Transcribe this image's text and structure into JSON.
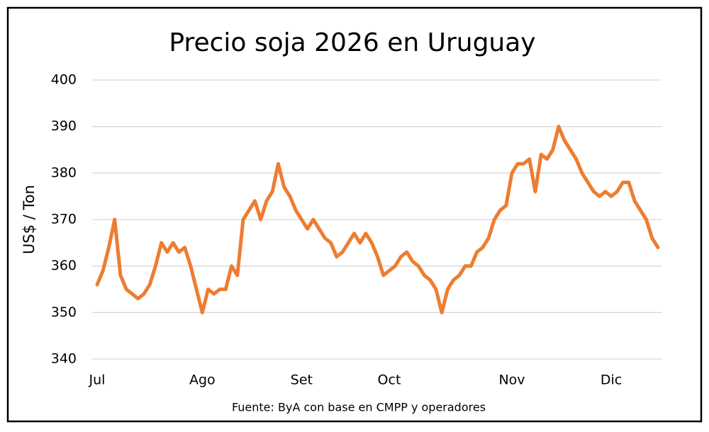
{
  "chart_data": {
    "type": "line",
    "title": "Precio soja 2026 en Uruguay",
    "y_label": "US$ / Ton",
    "source": "Fuente: ByA con base en CMPP y operadores",
    "categories": [
      "Jul",
      null,
      null,
      null,
      null,
      null,
      null,
      null,
      null,
      null,
      null,
      null,
      null,
      null,
      null,
      null,
      null,
      null,
      "Ago",
      null,
      null,
      null,
      null,
      null,
      null,
      null,
      null,
      null,
      null,
      null,
      null,
      null,
      null,
      null,
      null,
      "Set",
      null,
      null,
      null,
      null,
      null,
      null,
      null,
      null,
      null,
      null,
      null,
      null,
      null,
      null,
      "Oct",
      null,
      null,
      null,
      null,
      null,
      null,
      null,
      null,
      null,
      null,
      null,
      null,
      null,
      null,
      null,
      null,
      null,
      null,
      null,
      null,
      "Nov",
      null,
      null,
      null,
      null,
      null,
      null,
      null,
      null,
      null,
      null,
      null,
      null,
      null,
      null,
      null,
      null,
      "Dic",
      null,
      null,
      null,
      null,
      null,
      null,
      null,
      null
    ],
    "series": [
      {
        "name": "Precio",
        "color": "#ed7d31",
        "values": [
          356,
          359,
          364,
          370,
          358,
          355,
          354,
          353,
          354,
          356,
          360,
          365,
          363,
          365,
          363,
          364,
          360,
          355,
          350,
          355,
          354,
          355,
          355,
          360,
          358,
          370,
          372,
          374,
          370,
          374,
          376,
          382,
          377,
          375,
          372,
          370,
          368,
          370,
          368,
          366,
          365,
          362,
          363,
          365,
          367,
          365,
          367,
          365,
          362,
          358,
          359,
          360,
          362,
          363,
          361,
          360,
          358,
          357,
          355,
          350,
          355,
          357,
          358,
          360,
          360,
          363,
          364,
          366,
          370,
          372,
          373,
          380,
          382,
          382,
          383,
          376,
          384,
          383,
          385,
          390,
          387,
          385,
          383,
          380,
          378,
          376,
          375,
          376,
          375,
          376,
          378,
          378,
          374,
          372,
          370,
          366,
          364
        ]
      }
    ],
    "ylim": [
      340,
      400
    ],
    "yticks": [
      340,
      350,
      360,
      370,
      380,
      390,
      400
    ],
    "grid": true
  }
}
